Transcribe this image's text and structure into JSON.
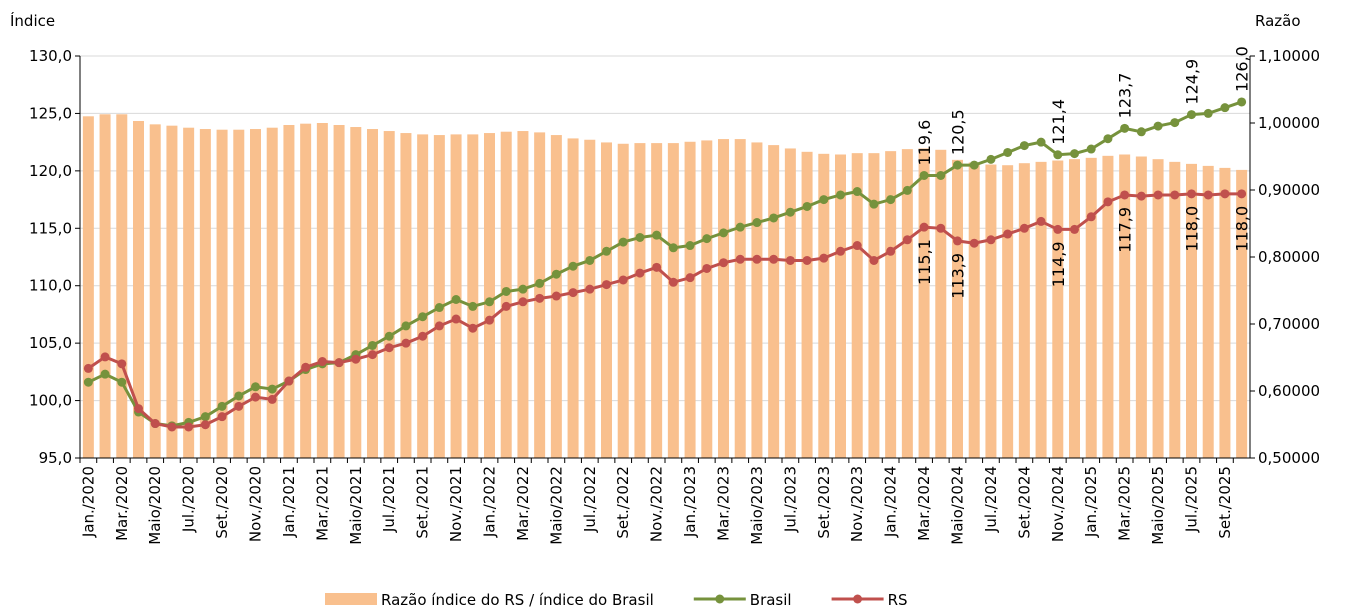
{
  "chart_data": {
    "type": "combo",
    "y_label": "Índice",
    "y2_label": "Razão",
    "categories": [
      "Jan./2020",
      null,
      "Mar./2020",
      null,
      "Maio/2020",
      null,
      "Jul./2020",
      null,
      "Set./2020",
      null,
      "Nov./2020",
      null,
      "Jan./2021",
      null,
      "Mar./2021",
      null,
      "Maio/2021",
      null,
      "Jul./2021",
      null,
      "Set./2021",
      null,
      "Nov./2021",
      null,
      "Jan./2022",
      null,
      "Mar./2022",
      null,
      "Maio/2022",
      null,
      "Jul./2022",
      null,
      "Set./2022",
      null,
      "Nov./2022",
      null,
      "Jan./2023",
      null,
      "Mar./2023",
      null,
      "Maio/2023",
      null,
      "Jul./2023",
      null,
      "Set./2023",
      null,
      "Nov./2023",
      null,
      "Jan./2024",
      null,
      "Mar./2024",
      null,
      "Maio/2024",
      null,
      "Jul./2024",
      null,
      "Set./2024",
      null,
      "Nov./2024",
      null,
      "Jan./2025",
      null,
      "Mar./2025",
      null,
      "Maio/2025",
      null,
      "Jul./2025",
      null,
      "Set./2025",
      null
    ],
    "series": [
      {
        "name": "Razão índice do RS / índice do Brasil",
        "type": "bar",
        "axis": "y2",
        "color": "#f9c08e",
        "values": [
          1.01,
          1.013,
          1.013,
          1.003,
          0.998,
          0.996,
          0.993,
          0.991,
          0.99,
          0.99,
          0.991,
          0.993,
          0.997,
          0.999,
          1.0,
          0.997,
          0.994,
          0.991,
          0.988,
          0.985,
          0.983,
          0.982,
          0.983,
          0.983,
          0.985,
          0.987,
          0.988,
          0.986,
          0.982,
          0.977,
          0.975,
          0.971,
          0.969,
          0.97,
          0.97,
          0.97,
          0.972,
          0.974,
          0.976,
          0.976,
          0.971,
          0.967,
          0.962,
          0.957,
          0.954,
          0.953,
          0.955,
          0.955,
          0.958,
          0.961,
          0.962,
          0.96,
          0.945,
          0.941,
          0.938,
          0.937,
          0.94,
          0.942,
          0.944,
          0.946,
          0.948,
          0.951,
          0.953,
          0.95,
          0.946,
          0.942,
          0.939,
          0.936,
          0.933,
          0.93
        ]
      },
      {
        "name": "Brasil",
        "type": "line",
        "color": "#76923c",
        "values": [
          101.6,
          102.3,
          101.6,
          99.0,
          98.0,
          97.8,
          98.1,
          98.6,
          99.5,
          100.4,
          101.2,
          101.0,
          101.7,
          102.7,
          103.2,
          103.3,
          104.0,
          104.8,
          105.6,
          106.5,
          107.3,
          108.1,
          108.8,
          108.2,
          108.6,
          109.5,
          109.7,
          110.2,
          111.0,
          111.7,
          112.2,
          113.0,
          113.8,
          114.2,
          114.4,
          113.3,
          113.5,
          114.1,
          114.6,
          115.1,
          115.5,
          115.9,
          116.4,
          116.9,
          117.5,
          117.9,
          118.2,
          117.1,
          117.5,
          118.3,
          119.6,
          119.6,
          120.5,
          120.5,
          121.0,
          121.6,
          122.2,
          122.5,
          121.4,
          121.5,
          121.9,
          122.8,
          123.7,
          123.4,
          123.9,
          124.2,
          124.9,
          125.0,
          125.5,
          126.0
        ],
        "value_labels": [
          null,
          null,
          null,
          null,
          null,
          null,
          null,
          null,
          null,
          null,
          null,
          null,
          null,
          null,
          null,
          null,
          null,
          null,
          null,
          null,
          null,
          null,
          null,
          null,
          null,
          null,
          null,
          null,
          null,
          null,
          null,
          null,
          null,
          null,
          null,
          null,
          null,
          null,
          null,
          null,
          null,
          null,
          null,
          null,
          null,
          null,
          null,
          null,
          null,
          null,
          "119,6",
          null,
          "120,5",
          null,
          null,
          null,
          null,
          null,
          "121,4",
          null,
          null,
          null,
          "123,7",
          null,
          null,
          null,
          "124,9",
          null,
          null,
          "126,0"
        ]
      },
      {
        "name": "RS",
        "type": "line",
        "color": "#c0504d",
        "values": [
          102.8,
          103.8,
          103.2,
          99.3,
          98.0,
          97.7,
          97.7,
          97.9,
          98.6,
          99.5,
          100.3,
          100.1,
          101.7,
          102.9,
          103.4,
          103.3,
          103.6,
          104.0,
          104.6,
          105.0,
          105.6,
          106.5,
          107.1,
          106.3,
          107.0,
          108.2,
          108.6,
          108.9,
          109.1,
          109.4,
          109.7,
          110.1,
          110.5,
          111.1,
          111.6,
          110.3,
          110.7,
          111.5,
          112.0,
          112.3,
          112.3,
          112.3,
          112.2,
          112.2,
          112.4,
          113.0,
          113.5,
          112.2,
          113.0,
          114.0,
          115.1,
          115.0,
          113.9,
          113.7,
          114.0,
          114.5,
          115.0,
          115.6,
          114.9,
          114.9,
          116.0,
          117.3,
          117.9,
          117.8,
          117.9,
          117.9,
          118.0,
          117.9,
          118.0,
          118.0
        ],
        "value_labels": [
          null,
          null,
          null,
          null,
          null,
          null,
          null,
          null,
          null,
          null,
          null,
          null,
          null,
          null,
          null,
          null,
          null,
          null,
          null,
          null,
          null,
          null,
          null,
          null,
          null,
          null,
          null,
          null,
          null,
          null,
          null,
          null,
          null,
          null,
          null,
          null,
          null,
          null,
          null,
          null,
          null,
          null,
          null,
          null,
          null,
          null,
          null,
          null,
          null,
          null,
          "115,1",
          null,
          "113,9",
          null,
          null,
          null,
          null,
          null,
          "114,9",
          null,
          null,
          null,
          "117,9",
          null,
          null,
          null,
          "118,0",
          null,
          null,
          "118,0"
        ]
      }
    ],
    "ylim": [
      95,
      130
    ],
    "yticks": [
      {
        "value": 95,
        "label": "95,0"
      },
      {
        "value": 100,
        "label": "100,0"
      },
      {
        "value": 105,
        "label": "105,0"
      },
      {
        "value": 110,
        "label": "110,0"
      },
      {
        "value": 115,
        "label": "115,0"
      },
      {
        "value": 120,
        "label": "120,0"
      },
      {
        "value": 125,
        "label": "125,0"
      },
      {
        "value": 130,
        "label": "130,0"
      }
    ],
    "y2lim": [
      0.5,
      1.1
    ],
    "y2ticks": [
      {
        "value": 0.5,
        "label": "0,50000"
      },
      {
        "value": 0.6,
        "label": "0,60000"
      },
      {
        "value": 0.7,
        "label": "0,70000"
      },
      {
        "value": 0.8,
        "label": "0,80000"
      },
      {
        "value": 0.9,
        "label": "0,90000"
      },
      {
        "value": 1.0,
        "label": "1,00000"
      },
      {
        "value": 1.1,
        "label": "1,10000"
      }
    ],
    "grid": true,
    "legend": "bottom"
  }
}
